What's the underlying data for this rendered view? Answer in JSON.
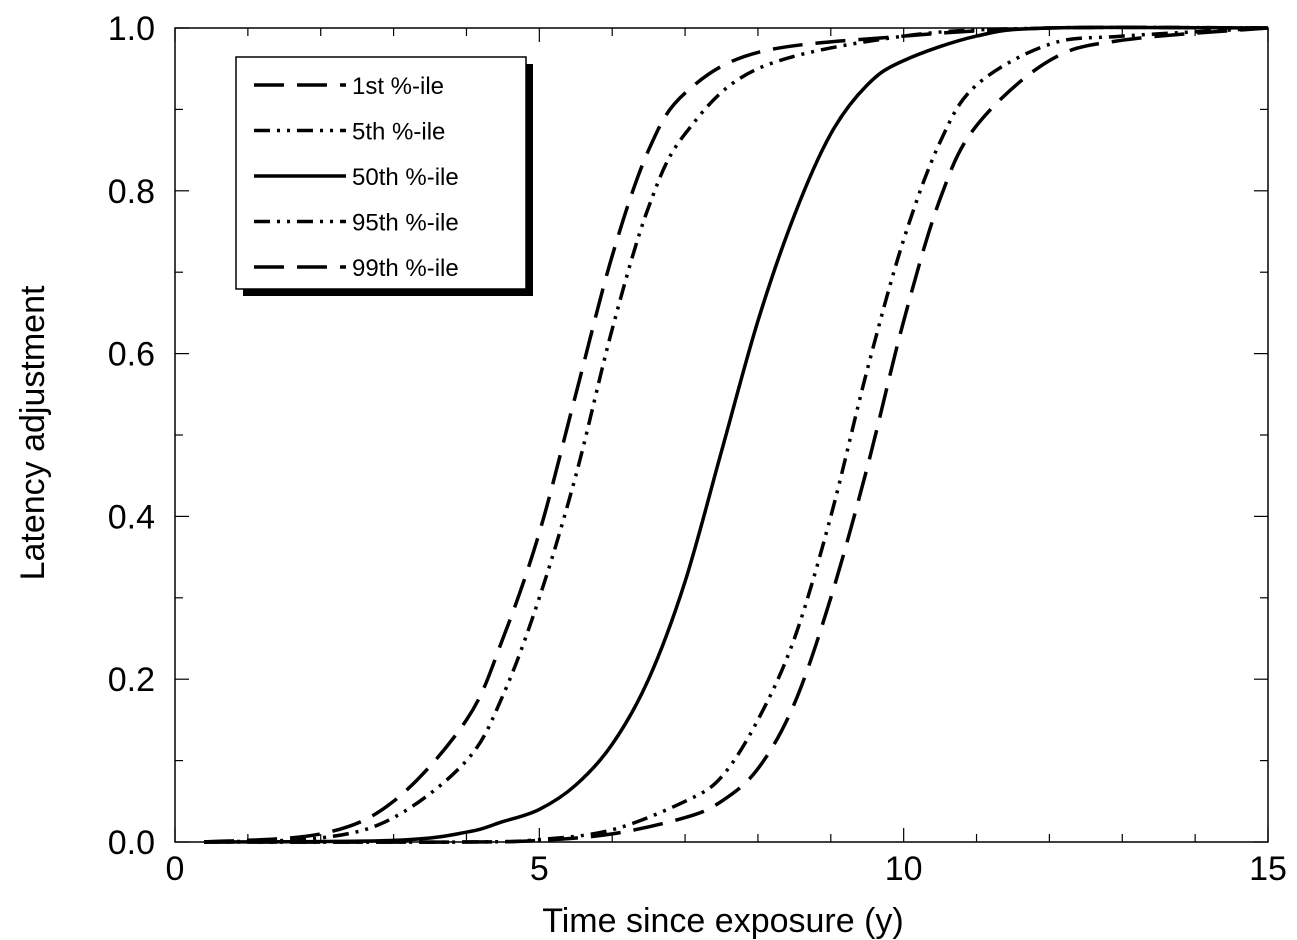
{
  "chart_data": {
    "type": "line",
    "title": "",
    "xlabel": "Time since exposure (y)",
    "ylabel": "Latency adjustment",
    "xlim": [
      0,
      15
    ],
    "ylim": [
      0.0,
      1.0
    ],
    "x_ticks": [
      0,
      5,
      10,
      15
    ],
    "x_tick_labels": [
      "0",
      "5",
      "10",
      "15"
    ],
    "y_ticks": [
      0.0,
      0.2,
      0.4,
      0.6,
      0.8,
      1.0
    ],
    "y_tick_labels": [
      "0.0",
      "0.2",
      "0.4",
      "0.6",
      "0.8",
      "1.0"
    ],
    "grid": false,
    "legend_position": "top-left",
    "series": [
      {
        "name": "1st %-ile",
        "line_style": "long-dash",
        "color": "#000000",
        "x": [
          0.4,
          2.0,
          3.0,
          4.0,
          4.5,
          5.0,
          5.5,
          6.0,
          6.5,
          7.0,
          8.0,
          10.0,
          12.0,
          15.0
        ],
        "y": [
          0.0,
          0.01,
          0.05,
          0.15,
          0.25,
          0.38,
          0.55,
          0.72,
          0.85,
          0.92,
          0.97,
          0.99,
          1.0,
          1.0
        ]
      },
      {
        "name": "5th %-ile",
        "line_style": "dash-dot-dot",
        "color": "#000000",
        "x": [
          0.4,
          2.0,
          3.0,
          4.0,
          4.5,
          5.0,
          5.5,
          6.0,
          6.5,
          7.0,
          8.0,
          10.0,
          12.0,
          15.0
        ],
        "y": [
          0.0,
          0.005,
          0.03,
          0.1,
          0.18,
          0.3,
          0.45,
          0.63,
          0.78,
          0.87,
          0.95,
          0.99,
          1.0,
          1.0
        ]
      },
      {
        "name": "50th %-ile",
        "line_style": "solid",
        "color": "#000000",
        "x": [
          0.4,
          3.0,
          4.0,
          4.5,
          5.0,
          5.5,
          6.0,
          6.5,
          7.0,
          7.5,
          8.0,
          8.5,
          9.0,
          9.5,
          10.0,
          11.0,
          12.0,
          15.0
        ],
        "y": [
          0.0,
          0.002,
          0.012,
          0.025,
          0.04,
          0.07,
          0.12,
          0.2,
          0.32,
          0.48,
          0.64,
          0.77,
          0.87,
          0.93,
          0.96,
          0.99,
          1.0,
          1.0
        ]
      },
      {
        "name": "95th %-ile",
        "line_style": "dash-dot-dot",
        "color": "#000000",
        "x": [
          0.4,
          4.0,
          5.0,
          6.0,
          7.0,
          7.5,
          8.0,
          8.5,
          9.0,
          9.5,
          10.0,
          10.5,
          11.0,
          12.0,
          13.0,
          15.0
        ],
        "y": [
          0.0,
          0.0,
          0.003,
          0.015,
          0.05,
          0.08,
          0.15,
          0.25,
          0.4,
          0.58,
          0.74,
          0.86,
          0.93,
          0.98,
          0.99,
          1.0
        ]
      },
      {
        "name": "99th %-ile",
        "line_style": "long-dash",
        "color": "#000000",
        "x": [
          0.4,
          4.0,
          5.0,
          6.0,
          7.0,
          7.5,
          8.0,
          8.5,
          9.0,
          9.5,
          10.0,
          10.5,
          11.0,
          12.0,
          13.0,
          15.0
        ],
        "y": [
          0.0,
          0.0,
          0.002,
          0.01,
          0.03,
          0.05,
          0.09,
          0.17,
          0.3,
          0.46,
          0.64,
          0.79,
          0.88,
          0.96,
          0.985,
          1.0
        ]
      }
    ]
  }
}
